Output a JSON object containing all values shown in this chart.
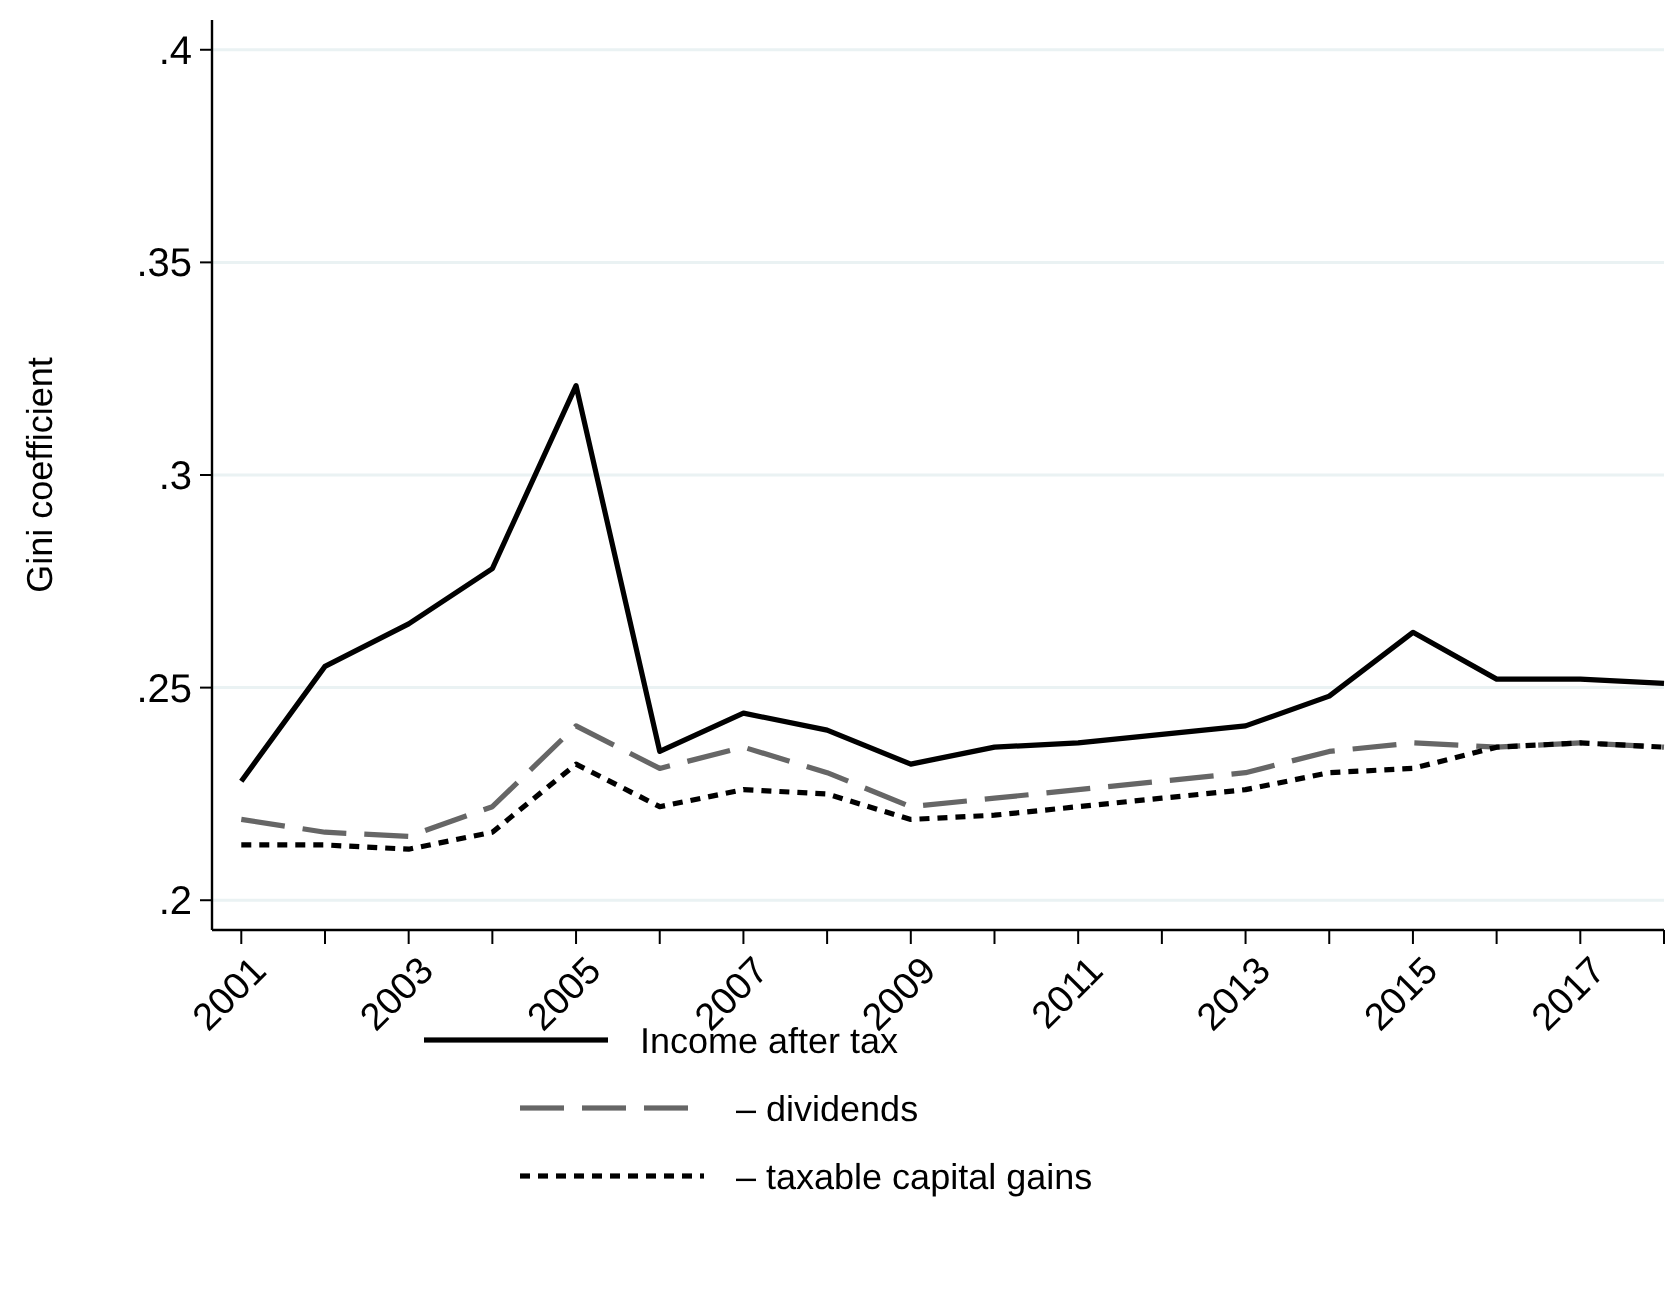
{
  "chart_data": {
    "type": "line",
    "ylabel": "Gini coefficient",
    "x": [
      2001,
      2002,
      2003,
      2004,
      2005,
      2006,
      2007,
      2008,
      2009,
      2010,
      2011,
      2012,
      2013,
      2014,
      2015,
      2016,
      2017,
      2018
    ],
    "series": [
      {
        "name": "Income after tax",
        "color": "#000000",
        "line_style": "solid",
        "values": [
          0.228,
          0.255,
          0.265,
          0.278,
          0.321,
          0.235,
          0.244,
          0.24,
          0.232,
          0.236,
          0.237,
          0.239,
          0.241,
          0.248,
          0.263,
          0.252,
          0.252,
          0.251
        ]
      },
      {
        "name": "– dividends",
        "color": "#666666",
        "line_style": "dashed",
        "values": [
          0.219,
          0.216,
          0.215,
          0.222,
          0.241,
          0.231,
          0.236,
          0.23,
          0.222,
          0.224,
          0.226,
          0.228,
          0.23,
          0.235,
          0.237,
          0.236,
          0.237,
          0.236
        ]
      },
      {
        "name": "– taxable capital gains",
        "color": "#000000",
        "line_style": "dotted",
        "values": [
          0.213,
          0.213,
          0.212,
          0.216,
          0.232,
          0.222,
          0.226,
          0.225,
          0.219,
          0.22,
          0.222,
          0.224,
          0.226,
          0.23,
          0.231,
          0.236,
          0.237,
          0.236
        ]
      }
    ],
    "xlim": [
      2000.65,
      2018
    ],
    "xticks": [
      2001,
      {
        "value": 2002,
        "label": null
      },
      2003,
      {
        "value": 2004,
        "label": null
      },
      2005,
      {
        "value": 2006,
        "label": null
      },
      2007,
      {
        "value": 2008,
        "label": null
      },
      2009,
      {
        "value": 2010,
        "label": null
      },
      2011,
      {
        "value": 2012,
        "label": null
      },
      2013,
      {
        "value": 2014,
        "label": null
      },
      2015,
      {
        "value": 2016,
        "label": null
      },
      2017,
      {
        "value": 2018,
        "label": null
      }
    ],
    "ylim": [
      0.193,
      0.407
    ],
    "yticks": [
      {
        "value": 0.2,
        "label": ".2"
      },
      {
        "value": 0.25,
        "label": ".25"
      },
      {
        "value": 0.3,
        "label": ".3"
      },
      {
        "value": 0.35,
        "label": ".35"
      },
      {
        "value": 0.4,
        "label": ".4"
      }
    ],
    "grid": "y",
    "legend": "bottom",
    "marker": "none"
  }
}
